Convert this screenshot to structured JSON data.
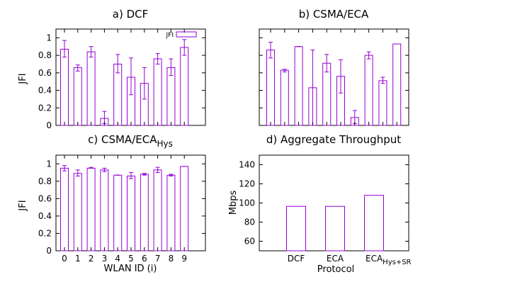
{
  "colors": {
    "bar": "#9400d3",
    "axis": "#000000",
    "background": "#ffffff"
  },
  "chart_data": [
    {
      "type": "bar",
      "title": "a) DCF",
      "ylabel": "JFI",
      "xlabel": "",
      "categories": [
        "0",
        "1",
        "2",
        "3",
        "4",
        "5",
        "6",
        "7",
        "8",
        "9"
      ],
      "values": [
        0.87,
        0.66,
        0.84,
        0.08,
        0.7,
        0.55,
        0.48,
        0.76,
        0.66,
        0.89
      ],
      "error_low": [
        0.78,
        0.62,
        0.78,
        0.02,
        0.6,
        0.35,
        0.3,
        0.7,
        0.57,
        0.8
      ],
      "error_high": [
        0.97,
        0.69,
        0.9,
        0.16,
        0.81,
        0.77,
        0.66,
        0.82,
        0.76,
        0.98
      ],
      "ylim": [
        0,
        1.1
      ],
      "yticks": [
        "0",
        "0.2",
        "0.4",
        "0.6",
        "0.8",
        "1"
      ],
      "show_yticklabels": true,
      "show_xticklabels": false,
      "legend": {
        "label": "JFI",
        "position": "top-right"
      }
    },
    {
      "type": "bar",
      "title": "b) CSMA/ECA",
      "ylabel": "",
      "xlabel": "",
      "categories": [
        "0",
        "1",
        "2",
        "3",
        "4",
        "5",
        "6",
        "7",
        "8",
        "9"
      ],
      "values": [
        0.86,
        0.63,
        0.9,
        0.43,
        0.71,
        0.56,
        0.09,
        0.8,
        0.51,
        0.93
      ],
      "error_low": [
        0.77,
        0.61,
        0.9,
        0.0,
        0.61,
        0.37,
        0.02,
        0.76,
        0.48,
        0.93
      ],
      "error_high": [
        0.95,
        0.64,
        0.9,
        0.86,
        0.81,
        0.75,
        0.17,
        0.84,
        0.55,
        0.93
      ],
      "ylim": [
        0,
        1.1
      ],
      "yticks": [
        "0",
        "0.2",
        "0.4",
        "0.6",
        "0.8",
        "1"
      ],
      "show_yticklabels": false,
      "show_xticklabels": false
    },
    {
      "type": "bar",
      "title": "c) CSMA/ECA",
      "title_subscript": "Hys",
      "ylabel": "JFI",
      "xlabel": "WLAN ID (i)",
      "categories": [
        "0",
        "1",
        "2",
        "3",
        "4",
        "5",
        "6",
        "7",
        "8",
        "9"
      ],
      "values": [
        0.95,
        0.89,
        0.95,
        0.93,
        0.87,
        0.86,
        0.88,
        0.93,
        0.87,
        0.97
      ],
      "error_low": [
        0.92,
        0.86,
        0.95,
        0.91,
        0.87,
        0.83,
        0.87,
        0.9,
        0.86,
        0.97
      ],
      "error_high": [
        0.98,
        0.93,
        0.96,
        0.95,
        0.87,
        0.9,
        0.89,
        0.96,
        0.88,
        0.97
      ],
      "ylim": [
        0,
        1.1
      ],
      "yticks": [
        "0",
        "0.2",
        "0.4",
        "0.6",
        "0.8",
        "1"
      ],
      "show_yticklabels": true,
      "show_xticklabels": true
    },
    {
      "type": "bar",
      "title": "d) Aggregate Throughput",
      "ylabel": "Mbps",
      "xlabel": "Protocol",
      "categories": [
        "DCF",
        "ECA",
        "ECA"
      ],
      "category_subscripts": [
        "",
        "",
        "Hys+SR"
      ],
      "values": [
        96.5,
        96.5,
        108
      ],
      "ylim": [
        50,
        150
      ],
      "yticks": [
        "60",
        "80",
        "100",
        "120",
        "140"
      ],
      "show_yticklabels": true,
      "show_xticklabels": true
    }
  ]
}
